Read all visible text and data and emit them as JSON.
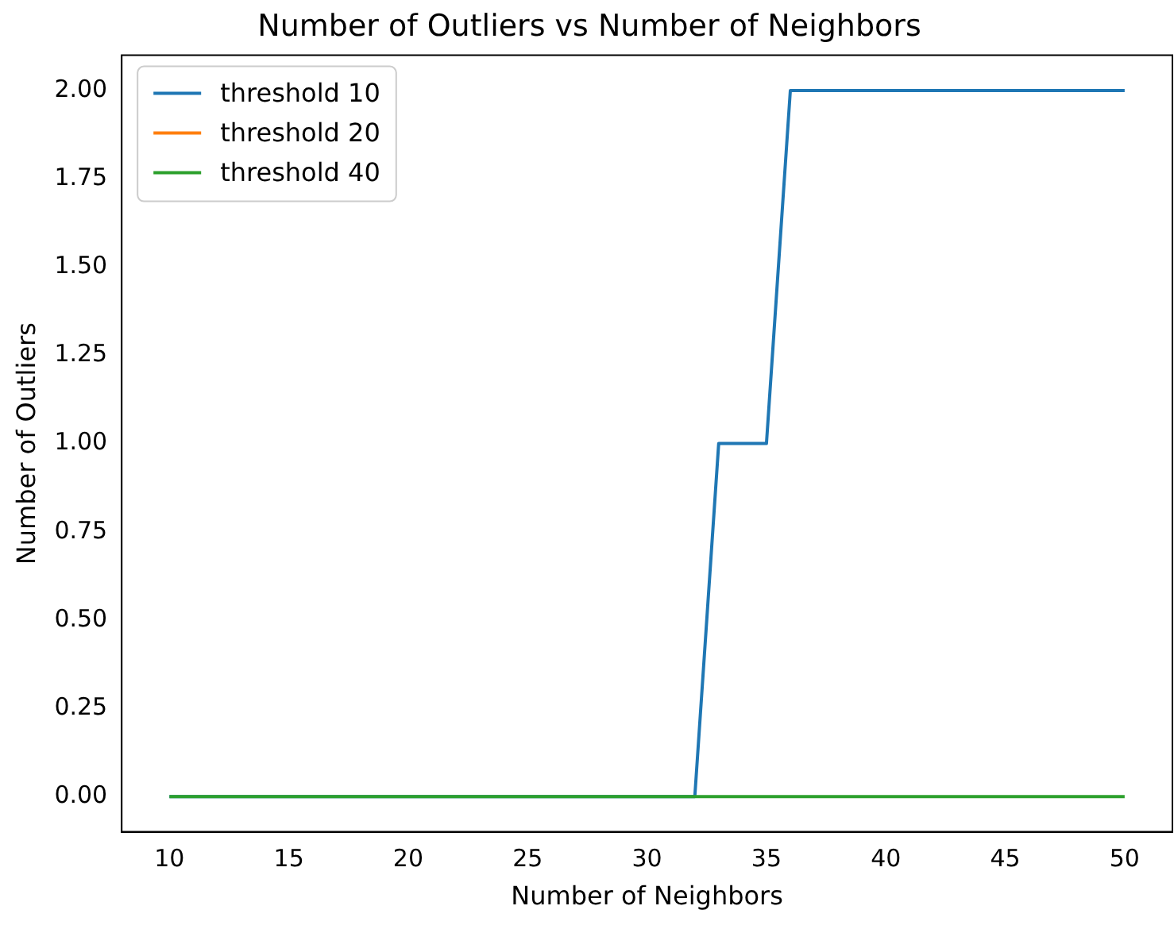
{
  "chart_data": {
    "type": "line",
    "title": "Number of Outliers vs Number of Neighbors",
    "xlabel": "Number of Neighbors",
    "ylabel": "Number of Outliers",
    "series": [
      {
        "name": "threshold 10",
        "color": "#1f77b4",
        "x": [
          10,
          32,
          33,
          35,
          36,
          50
        ],
        "values": [
          0,
          0,
          1,
          1,
          2,
          2
        ]
      },
      {
        "name": "threshold 20",
        "color": "#ff7f0e"
      },
      {
        "name": "threshold 40",
        "color": "#2ca02c",
        "x": [
          10,
          50
        ],
        "values": [
          0,
          0
        ]
      }
    ],
    "xlim": [
      8,
      52
    ],
    "xticks": [
      10,
      15,
      20,
      25,
      30,
      35,
      40,
      45,
      50
    ],
    "ylim": [
      -0.1,
      2.1
    ],
    "yticks": [
      {
        "value": 0,
        "label": "0.00"
      },
      {
        "value": 0.25,
        "label": "0.25"
      },
      {
        "value": 0.5,
        "label": "0.50"
      },
      {
        "value": 0.75,
        "label": "0.75"
      },
      {
        "value": 1,
        "label": "1.00"
      },
      {
        "value": 1.25,
        "label": "1.25"
      },
      {
        "value": 1.5,
        "label": "1.50"
      },
      {
        "value": 1.75,
        "label": "1.75"
      },
      {
        "value": 2,
        "label": "2.00"
      }
    ],
    "grid": false,
    "legend": "top left",
    "marker": "none",
    "line_style": "solid"
  }
}
